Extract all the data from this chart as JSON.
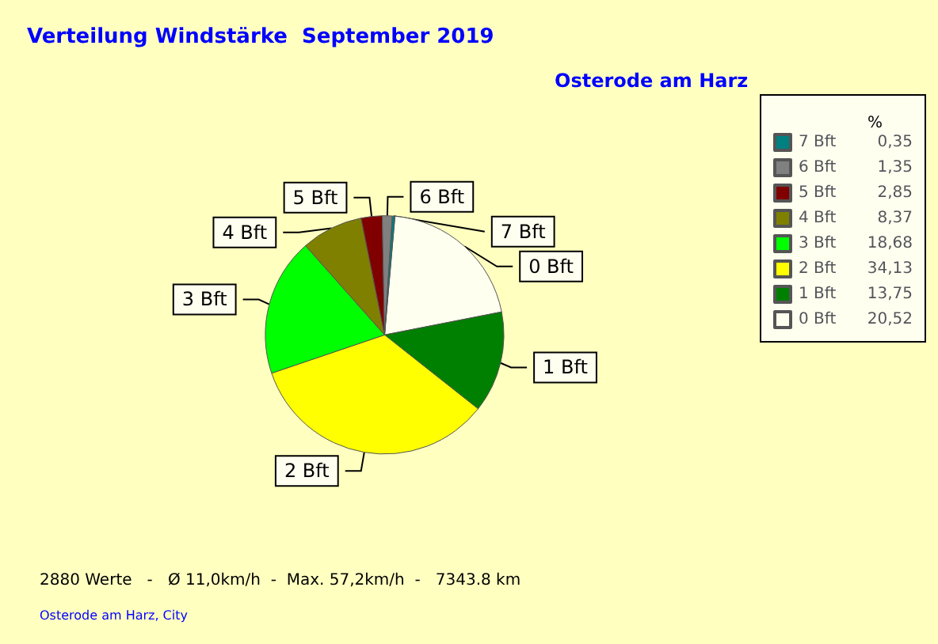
{
  "chart_data": {
    "type": "pie",
    "title": "Verteilung Windstärke  September 2019",
    "subtitle": "Osterode am Harz",
    "legend_title": "%",
    "categories": [
      "0 Bft",
      "1 Bft",
      "2 Bft",
      "3 Bft",
      "4 Bft",
      "5 Bft",
      "6 Bft",
      "7 Bft"
    ],
    "values": [
      20.52,
      13.75,
      34.13,
      18.68,
      8.37,
      2.85,
      1.35,
      0.35
    ],
    "value_labels": [
      "20,52",
      "13,75",
      "34,13",
      "18,68",
      "8,37",
      "2,85",
      "1,35",
      "0,35"
    ],
    "colors": [
      "#fffff0",
      "#008000",
      "#ffff00",
      "#00ff00",
      "#808000",
      "#800000",
      "#808080",
      "#008080"
    ],
    "legend": "right",
    "annotations": [
      "2880 Werte   -   Ø 11,0km/h  -  Max. 57,2km/h  -   7343.8 km",
      "Osterode am Harz, City"
    ]
  }
}
